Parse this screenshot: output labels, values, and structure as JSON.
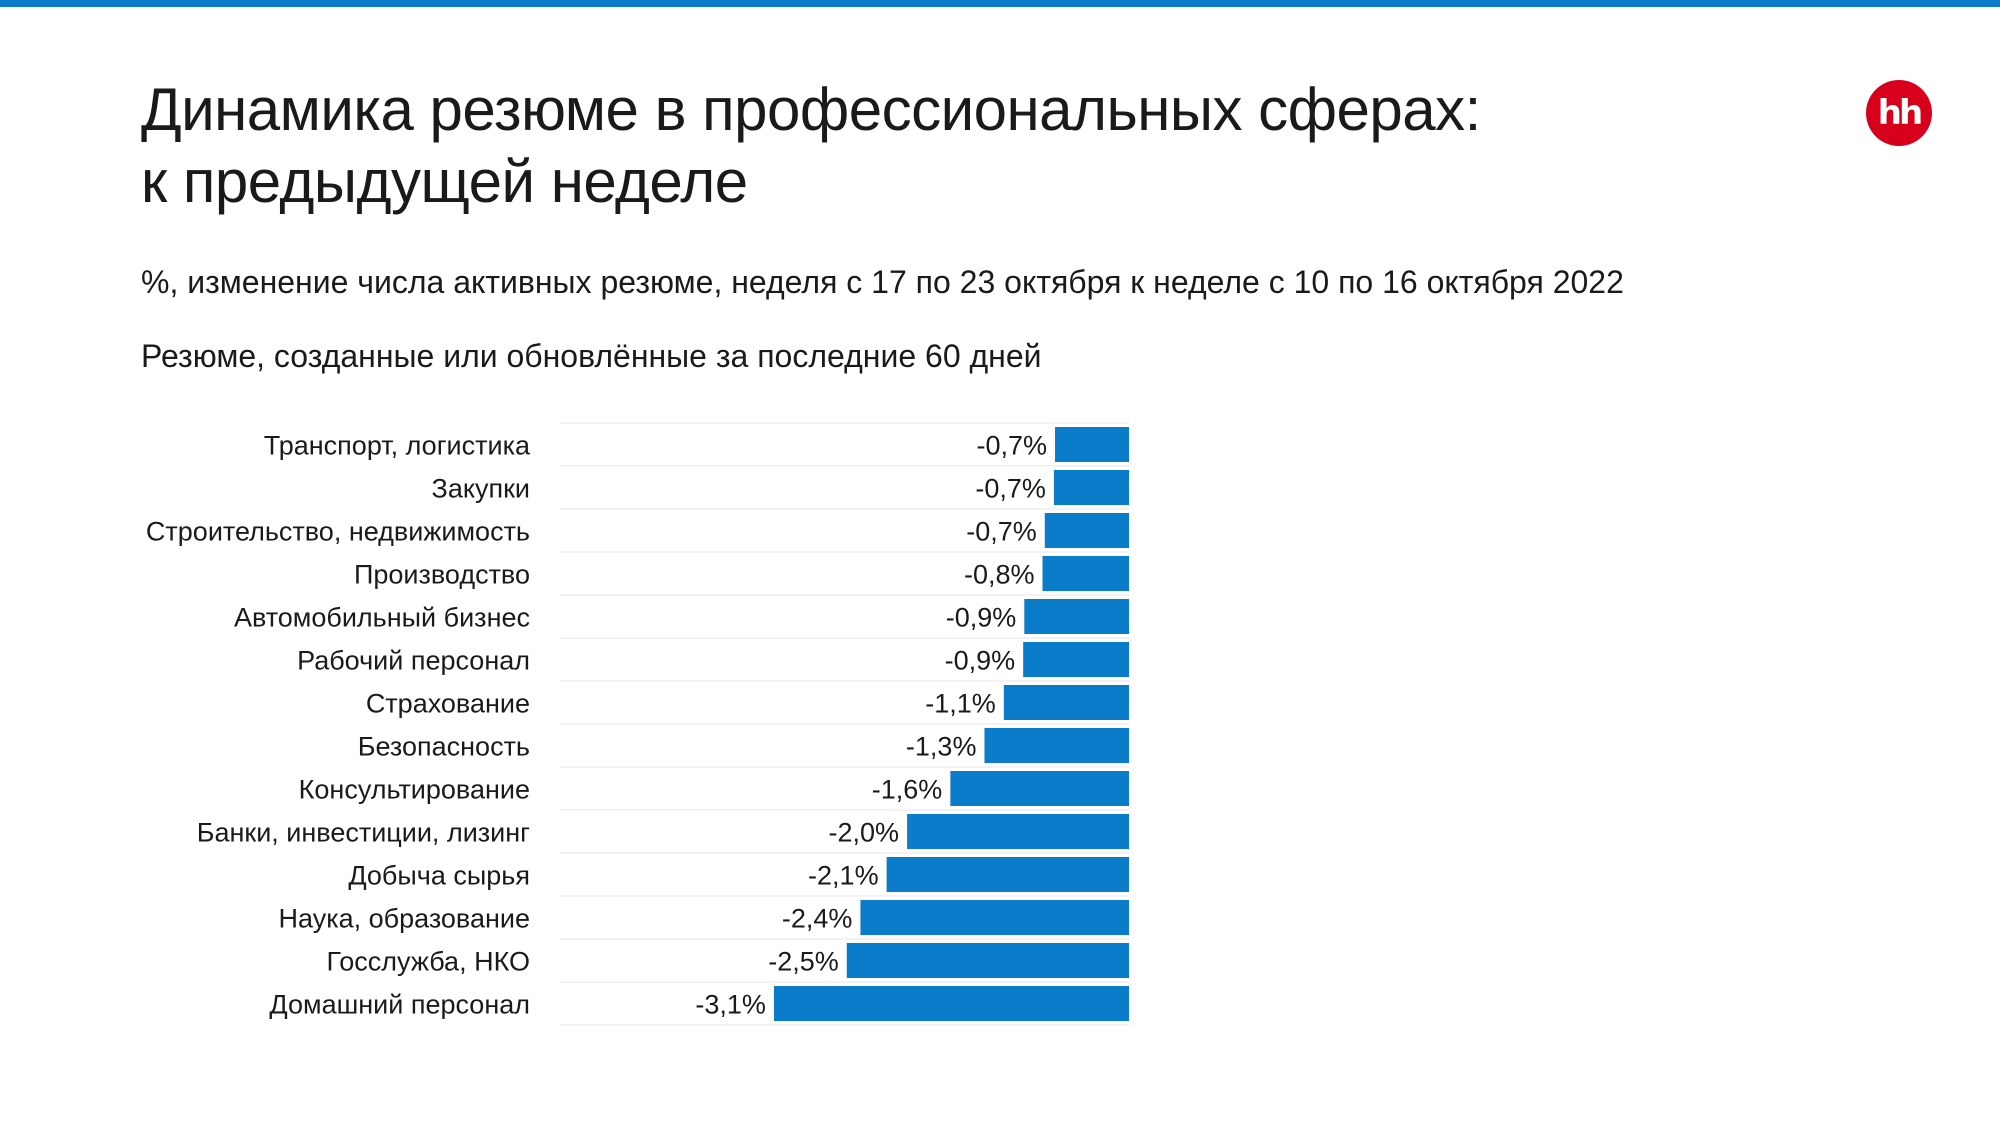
{
  "header": {
    "title_line1": "Динамика резюме в профессиональных сферах:",
    "title_line2": "к предыдущей неделе",
    "subtitle": "%, изменение числа активных резюме, неделя с 17 по 23 октября к неделе с 10 по 16 октября 2022",
    "note": "Резюме, созданные или обновлённые за последние 60 дней",
    "logo_text": "hh"
  },
  "colors": {
    "accent": "#0b7bc9",
    "bar": "#0a7cc9",
    "logo": "#d6001c",
    "gridline": "#e6e6e6"
  },
  "chart_data": {
    "type": "bar",
    "orientation": "horizontal",
    "categories": [
      "Транспорт, логистика",
      "Закупки",
      "Строительство, недвижимость",
      "Производство",
      "Автомобильный бизнес",
      "Рабочий персонал",
      "Страхование",
      "Безопасность",
      "Консультирование",
      "Банки, инвестиции, лизинг",
      "Добыча сырья",
      "Наука, образование",
      "Госслужба, НКО",
      "Домашний персонал"
    ],
    "values": [
      -0.65,
      -0.66,
      -0.74,
      -0.76,
      -0.92,
      -0.93,
      -1.1,
      -1.27,
      -1.57,
      -1.95,
      -2.13,
      -2.36,
      -2.48,
      -3.12
    ],
    "value_labels": [
      "-0,7%",
      "-0,7%",
      "-0,7%",
      "-0,8%",
      "-0,9%",
      "-0,9%",
      "-1,1%",
      "-1,3%",
      "-1,6%",
      "-2,0%",
      "-2,1%",
      "-2,4%",
      "-2,5%",
      "-3,1%"
    ],
    "xlim": [
      -5,
      0
    ],
    "grid": "horizontal row separators",
    "legend": "none"
  }
}
